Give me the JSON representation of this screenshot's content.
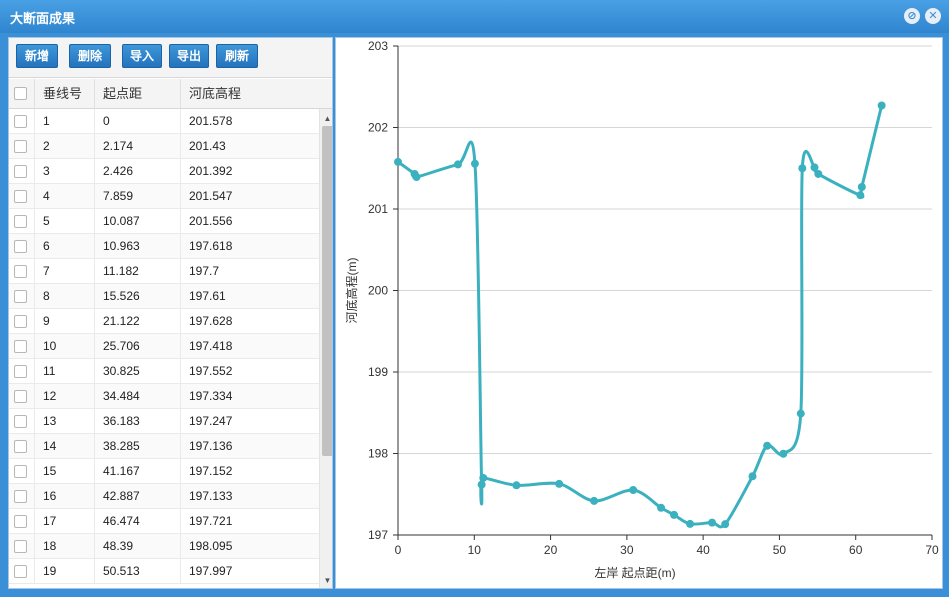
{
  "window": {
    "title": "大断面成果"
  },
  "toolbar": {
    "add": "新增",
    "delete": "删除",
    "import": "导入",
    "export": "导出",
    "refresh": "刷新"
  },
  "table": {
    "headers": [
      "垂线号",
      "起点距",
      "河底高程"
    ],
    "rows": [
      [
        "1",
        "0",
        "201.578"
      ],
      [
        "2",
        "2.174",
        "201.43"
      ],
      [
        "3",
        "2.426",
        "201.392"
      ],
      [
        "4",
        "7.859",
        "201.547"
      ],
      [
        "5",
        "10.087",
        "201.556"
      ],
      [
        "6",
        "10.963",
        "197.618"
      ],
      [
        "7",
        "11.182",
        "197.7"
      ],
      [
        "8",
        "15.526",
        "197.61"
      ],
      [
        "9",
        "21.122",
        "197.628"
      ],
      [
        "10",
        "25.706",
        "197.418"
      ],
      [
        "11",
        "30.825",
        "197.552"
      ],
      [
        "12",
        "34.484",
        "197.334"
      ],
      [
        "13",
        "36.183",
        "197.247"
      ],
      [
        "14",
        "38.285",
        "197.136"
      ],
      [
        "15",
        "41.167",
        "197.152"
      ],
      [
        "16",
        "42.887",
        "197.133"
      ],
      [
        "17",
        "46.474",
        "197.721"
      ],
      [
        "18",
        "48.39",
        "198.095"
      ],
      [
        "19",
        "50.513",
        "197.997"
      ]
    ]
  },
  "chart_data": {
    "type": "line",
    "xlabel": "左岸 起点距(m)",
    "ylabel": "河底高程(m)",
    "xlim": [
      0,
      70
    ],
    "ylim": [
      197,
      203
    ],
    "xticks": [
      "0",
      "10",
      "20",
      "30",
      "40",
      "50",
      "60",
      "70"
    ],
    "yticks": [
      "197",
      "198",
      "199",
      "200",
      "201",
      "202",
      "203"
    ],
    "grid": "horizontal",
    "color": "#3bb1bf",
    "x": [
      0,
      2.174,
      2.426,
      7.859,
      10.087,
      10.963,
      11.182,
      15.526,
      21.122,
      25.706,
      30.825,
      34.484,
      36.183,
      38.285,
      41.167,
      42.887,
      46.474,
      48.39,
      50.513,
      52.8,
      53.0,
      54.6,
      55.1,
      60.6,
      60.8,
      63.4
    ],
    "y": [
      201.578,
      201.43,
      201.392,
      201.547,
      201.556,
      197.618,
      197.7,
      197.61,
      197.628,
      197.418,
      197.552,
      197.334,
      197.247,
      197.136,
      197.152,
      197.133,
      197.721,
      198.095,
      197.997,
      198.49,
      201.5,
      201.51,
      201.43,
      201.17,
      201.27,
      202.27
    ]
  }
}
